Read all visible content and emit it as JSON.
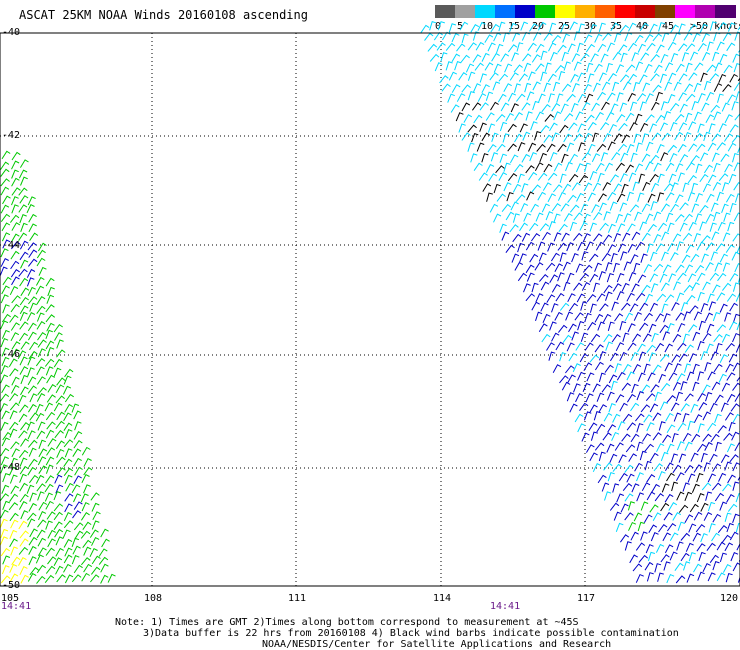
{
  "title": "ASCAT 25KM NOAA Winds 20160108 ascending",
  "legend": {
    "swatches": [
      {
        "color": "#5a5a5a"
      },
      {
        "color": "#a0a0a0"
      },
      {
        "color": "#00d8ff"
      },
      {
        "color": "#0070ff"
      },
      {
        "color": "#0000c8"
      },
      {
        "color": "#00c800"
      },
      {
        "color": "#ffff00"
      },
      {
        "color": "#ffb000"
      },
      {
        "color": "#ff6000"
      },
      {
        "color": "#ff0000"
      },
      {
        "color": "#c80000"
      },
      {
        "color": "#804000"
      },
      {
        "color": "#ff00ff"
      },
      {
        "color": "#b000b0"
      },
      {
        "color": "#500070"
      }
    ],
    "labels": [
      "0",
      "5",
      "10",
      "15",
      "20",
      "25",
      "30",
      "35",
      "40",
      "45",
      ">50 knots"
    ]
  },
  "map": {
    "lat_labels": [
      "-40",
      "-42",
      "-44",
      "-46",
      "-48",
      "-50"
    ],
    "lon_labels": [
      "105",
      "108",
      "111",
      "114",
      "117",
      "120"
    ],
    "time_labels": [
      "14:41",
      "14:41"
    ]
  },
  "notes": {
    "line1": "Note: 1) Times are GMT 2)Times along bottom correspond to measurement at ~45S",
    "line2": "3)Data buffer is 22 hrs from 20160108 4) Black wind barbs indicate possible contamination",
    "line3": "NOAA/NESDIS/Center for Satellite Applications and Research"
  },
  "wind_colors": {
    "black": "#000000",
    "cyan": "#00d8ff",
    "blue": "#0000c8",
    "green": "#00c800",
    "yellow": "#ffff00"
  }
}
